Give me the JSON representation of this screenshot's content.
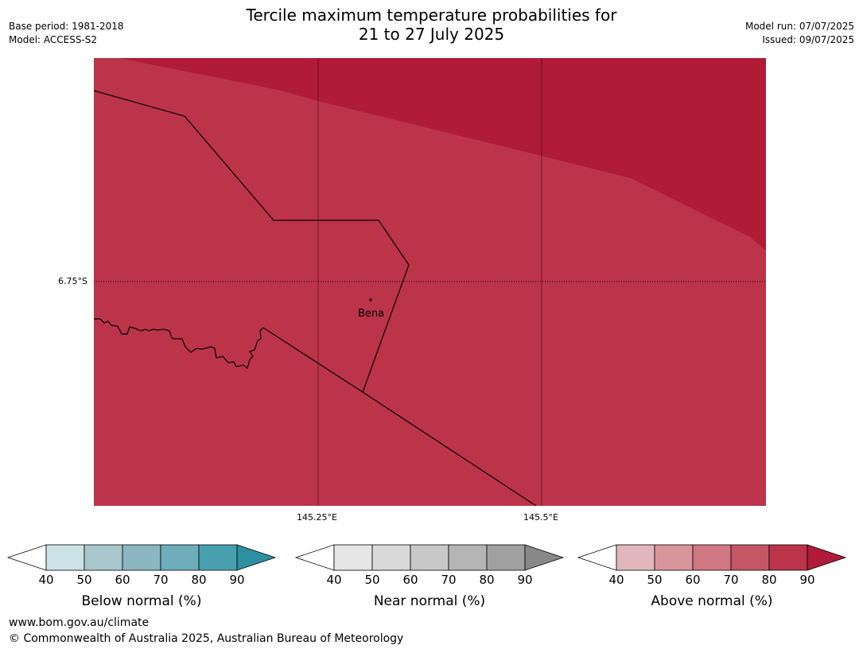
{
  "header": {
    "base_period": "Base period: 1981-2018",
    "model": "Model: ACCESS-S2",
    "title_line1": "Tercile maximum temperature probabilities for",
    "title_line2": "21 to 27 July 2025",
    "model_run": "Model run: 07/07/2025",
    "issued": "Issued: 09/07/2025"
  },
  "map": {
    "place_label": "Bena",
    "lat_label": "6.75°S",
    "lon_labels": [
      "145.25°E",
      "145.5°E"
    ],
    "colors": {
      "above_80_90": "#bc344a",
      "above_90_plus": "#b01c38",
      "border": "#000000"
    }
  },
  "colorbars": [
    {
      "label": "Below normal (%)",
      "ticks": [
        "40",
        "50",
        "60",
        "70",
        "80",
        "90"
      ],
      "colors": [
        "#ffffff",
        "#cbe2e7",
        "#a9c7cd",
        "#8bb6c2",
        "#6eaebb",
        "#48a0af",
        "#2d90a1"
      ]
    },
    {
      "label": "Near normal (%)",
      "ticks": [
        "40",
        "50",
        "60",
        "70",
        "80",
        "90"
      ],
      "colors": [
        "#ffffff",
        "#e6e6e6",
        "#d9d9d9",
        "#c8c8c8",
        "#b5b5b5",
        "#a0a0a0",
        "#888888"
      ]
    },
    {
      "label": "Above normal (%)",
      "ticks": [
        "40",
        "50",
        "60",
        "70",
        "80",
        "90"
      ],
      "colors": [
        "#ffffff",
        "#e2b7bc",
        "#d8959c",
        "#cf7782",
        "#c45666",
        "#bc344a",
        "#b01c38"
      ]
    }
  ],
  "footer": {
    "url": "www.bom.gov.au/climate",
    "copyright": "© Commonwealth of Australia 2025, Australian Bureau of Meteorology"
  }
}
